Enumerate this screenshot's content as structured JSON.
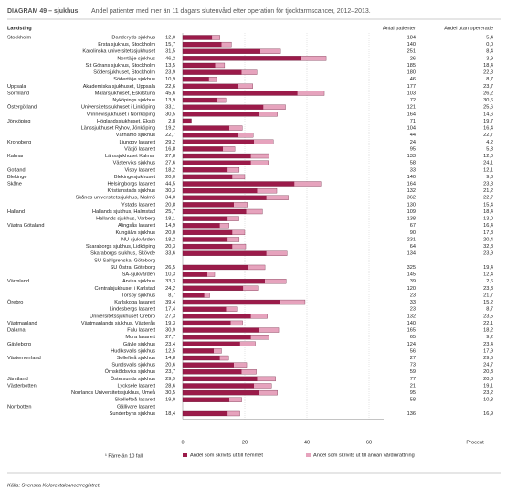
{
  "chart_data": {
    "type": "bar",
    "label": "DIAGRAM 49 – sjukhus:",
    "title": "Andel patienter med mer än 11 dagars slutenvård efter operation för tjocktarmscancer, 2012–2013.",
    "region_heading": "Landsting",
    "regions": [
      "Stockholm",
      null,
      null,
      null,
      null,
      null,
      null,
      "Uppsala",
      "Sörmland",
      null,
      "Östergötland",
      null,
      "Jönköping",
      null,
      null,
      "Kronoberg",
      null,
      "Kalmar",
      null,
      "Gotland",
      "Blekinge",
      "Skåne",
      null,
      null,
      null,
      "Halland",
      null,
      "Västra Götaland",
      null,
      null,
      null,
      null,
      null,
      null,
      null,
      "Värmland",
      null,
      null,
      "Örebro",
      null,
      null,
      "Västmanland",
      "Dalarna",
      null,
      "Gävleborg",
      null,
      "Västernorrland",
      null,
      null,
      "Jämtland",
      "Västerbotten",
      null,
      null,
      "Norrbotten",
      null
    ],
    "categories": [
      "Danderyds sjukhus",
      "Ersta sjukhus, Stockholm",
      "Karolinska universitetssjukhuset",
      "Norrtälje sjukhus",
      "S:t Görans sjukhus, Stockholm",
      "Södersjukhuset, Stockholm",
      "Södertälje sjukhus",
      "Akademiska sjukhuset, Uppsala",
      "Mälarsjukhuset, Eskilstuna",
      "Nyköpings sjukhus",
      "Universitetssjukhuset i Linköping",
      "Vrinnevisjukhuset i Norrköping",
      "Höglandssjukhuset, Eksjö",
      "Länssjukhuset Ryhov, Jönköping",
      "Värnamo sjukhus",
      "Ljungby lasarett",
      "Växjö lasarett",
      "Länssjukhuset Kalmar",
      "Västerviks sjukhus",
      "Visby lasarett",
      "Blekingesjukhuset",
      "Helsingborgs lasarett",
      "Kristianstads sjukhus",
      "Skånes universitetssjukhus, Malmö",
      "Ystads lasarett",
      "Hallands sjukhus, Halmstad",
      "Hallands sjukhus, Varberg",
      "Alingsås lasarett",
      "Kungälvs sjukhus",
      "NU-sjukvården",
      "Skaraborgs sjukhus, Lidköping",
      "Skaraborgs sjukhus, Skövde",
      "SU Sahlgrenska, Göteborg",
      "SU Östra, Göteborg",
      "SÄ-sjukvården",
      "Arvika sjukhus",
      "Centralsjukhuset i Karlstad",
      "Torsby sjukhus",
      "Karlskoga lasarett",
      "Lindesbergs lasarett",
      "Universitetssjukhuset Örebro",
      "Västmanlands sjukhus, Västerås",
      "Falu lasarett",
      "Mora lasarett",
      "Gävle sjukhus",
      "Hudiksvalls sjukhus",
      "Sollefteå sjukhus",
      "Sundsvalls sjukhus",
      "Örnsköldsviks sjukhus",
      "Östersunds sjukhus",
      "Lycksele lasarett",
      "Norrlands Universitetssjukhus, Umeå",
      "Skellefteå lasarett",
      "Gällivare lasarett",
      "Sunderbyns sjukhus"
    ],
    "values": [
      12.0,
      15.7,
      31.5,
      46.2,
      13.5,
      23.9,
      10.9,
      22.6,
      45.6,
      13.9,
      33.1,
      30.5,
      2.8,
      19.2,
      22.7,
      29.2,
      16.8,
      27.8,
      27.6,
      18.2,
      20.0,
      44.5,
      30.3,
      34.0,
      20.8,
      25.7,
      18.1,
      14.9,
      20.0,
      18.2,
      20.3,
      33.6,
      null,
      26.5,
      10.3,
      33.3,
      24.2,
      8.7,
      39.4,
      17.4,
      27.3,
      19.3,
      30.9,
      27.7,
      23.4,
      12.5,
      14.8,
      20.6,
      23.7,
      29.9,
      28.6,
      30.5,
      19.0,
      null,
      18.4
    ],
    "value_labels": [
      "12,0",
      "15,7",
      "31,5",
      "46,2",
      "13,5",
      "23,9",
      "10,9",
      "22,6",
      "45,6",
      "13,9",
      "33,1",
      "30,5",
      "2,8",
      "19,2",
      "22,7",
      "29,2",
      "16,8",
      "27,8",
      "27,6",
      "18,2",
      "20,0",
      "44,5",
      "30,3",
      "34,0",
      "20,8",
      "25,7",
      "18,1",
      "14,9",
      "20,0",
      "18,2",
      "20,3",
      "33,6",
      null,
      "26,5",
      "10,3",
      "33,3",
      "24,2",
      "8,7",
      "39,4",
      "17,4",
      "27,3",
      "19,3",
      "30,9",
      "27,7",
      "23,4",
      "12,5",
      "14,8",
      "20,6",
      "23,7",
      "29,9",
      "28,6",
      "30,5",
      "19,0",
      null,
      "18,4"
    ],
    "series": [
      {
        "name": "Andel som skrivits ut till hemmet",
        "color": "#9b1b4a",
        "values": [
          9.5,
          12.5,
          25.0,
          38.0,
          10.5,
          19.0,
          8.5,
          18.0,
          37.0,
          11.0,
          26.0,
          24.5,
          2.8,
          15.0,
          18.0,
          23.0,
          13.0,
          22.0,
          22.0,
          14.5,
          16.0,
          36.0,
          24.0,
          27.0,
          16.5,
          20.5,
          14.5,
          12.0,
          16.0,
          14.5,
          16.0,
          27.0,
          null,
          21.0,
          8.0,
          26.5,
          19.5,
          7.0,
          31.5,
          14.0,
          22.0,
          15.5,
          24.5,
          22.0,
          18.5,
          10.0,
          12.0,
          16.5,
          19.0,
          24.0,
          23.0,
          24.5,
          15.0,
          null,
          14.5
        ]
      },
      {
        "name": "Andel som skrivits ut till annan vårdinrättning",
        "color": "#e6a3bd",
        "values": [
          2.5,
          3.2,
          6.5,
          8.2,
          3.0,
          4.9,
          2.4,
          4.6,
          8.6,
          2.9,
          7.1,
          6.0,
          0,
          4.2,
          4.7,
          6.2,
          3.8,
          5.8,
          5.6,
          3.7,
          4.0,
          8.5,
          6.3,
          7.0,
          4.3,
          5.2,
          3.6,
          2.9,
          4.0,
          3.7,
          4.3,
          6.6,
          null,
          5.5,
          2.3,
          6.8,
          4.7,
          1.7,
          7.9,
          3.4,
          5.3,
          3.8,
          6.4,
          5.7,
          4.9,
          2.5,
          2.8,
          4.1,
          4.7,
          5.9,
          5.6,
          6.0,
          4.0,
          null,
          3.9
        ]
      }
    ],
    "columns": [
      {
        "name": "Antal patienter",
        "values": [
          184,
          140,
          251,
          26,
          185,
          180,
          46,
          177,
          103,
          72,
          121,
          164,
          71,
          104,
          44,
          24,
          95,
          133,
          58,
          33,
          140,
          164,
          132,
          362,
          130,
          109,
          138,
          67,
          90,
          231,
          64,
          134,
          null,
          325,
          145,
          39,
          120,
          23,
          33,
          23,
          132,
          140,
          165,
          65,
          124,
          56,
          27,
          73,
          59,
          77,
          21,
          95,
          58,
          null,
          136
        ]
      },
      {
        "name": "Andel utan opererade",
        "values": [
          "5,4",
          "0,0",
          "8,4",
          "3,9",
          "18,4",
          "22,8",
          "8,7",
          "23,7",
          "26,2",
          "30,6",
          "25,6",
          "14,6",
          "19,7",
          "16,4",
          "22,7",
          "4,2",
          "5,3",
          "12,0",
          "24,1",
          "12,1",
          "9,3",
          "23,8",
          "21,2",
          "22,7",
          "15,4",
          "18,4",
          "13,0",
          "16,4",
          "17,8",
          "20,4",
          "32,8",
          "23,9",
          null,
          "19,4",
          "12,4",
          "2,6",
          "23,3",
          "21,7",
          "15,2",
          "8,7",
          "23,5",
          "22,1",
          "18,2",
          "9,2",
          "23,4",
          "17,9",
          "29,6",
          "24,7",
          "20,3",
          "20,8",
          "19,1",
          "23,2",
          "10,3",
          null,
          "16,9"
        ]
      }
    ],
    "xlim": [
      0,
      60
    ],
    "xticks": [
      0,
      20,
      40,
      60
    ],
    "x_label": "Procent",
    "grid": true,
    "footnote": "¹ Färre än 10 fall",
    "source": "Källa: Svenska Kolorektalcancerregistret."
  }
}
